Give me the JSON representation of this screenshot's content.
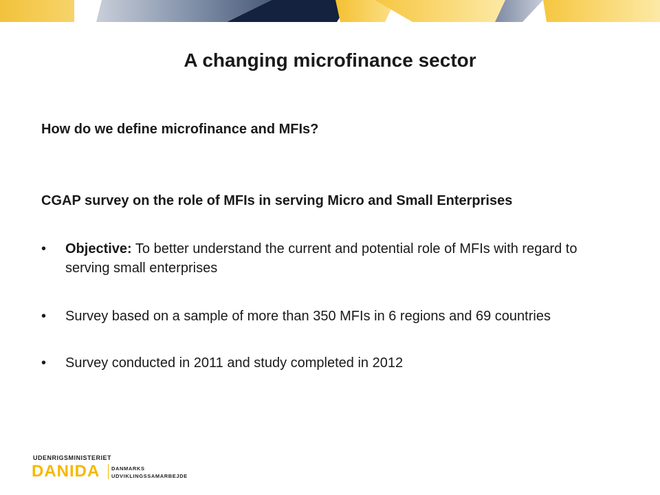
{
  "slide": {
    "title": "A changing microfinance sector",
    "question": "How do we define microfinance and MFIs?",
    "survey_heading": "CGAP survey on the role of MFIs in serving Micro and Small Enterprises",
    "bullet_char": "•",
    "bullets": [
      {
        "label": "Objective:",
        "text": " To better understand the current and potential role of MFIs with regard to serving small enterprises"
      },
      {
        "label": "",
        "text": "Survey based on a sample of more than 350 MFIs in 6 regions and 69 countries"
      },
      {
        "label": "",
        "text": "Survey conducted in 2011 and study completed in 2012"
      }
    ]
  },
  "logo": {
    "ministry": "UDENRIGSMINISTERIET",
    "name": "DANIDA",
    "subtitle_line1": "DANMARKS",
    "subtitle_line2": "UDVIKLINGSSAMARBEJDE"
  },
  "colors": {
    "accent_yellow": "#f5b800",
    "navy": "#1b2a4a",
    "slate": "#8190a8"
  }
}
